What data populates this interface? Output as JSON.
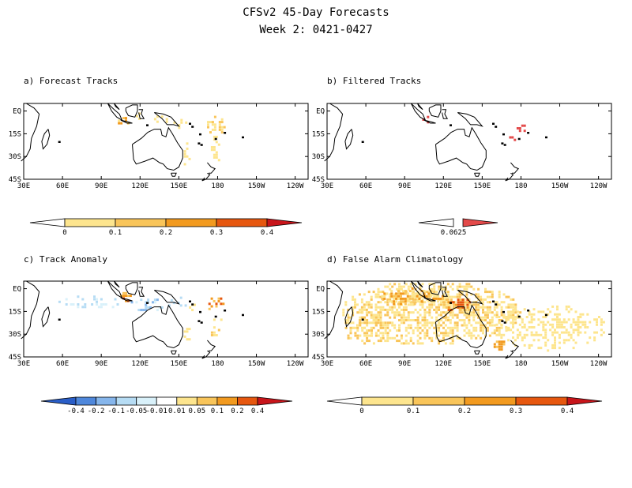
{
  "title": "CFSv2 45-Day Forecasts",
  "subtitle": "Week 2: 0421-0427",
  "panels": [
    {
      "label": "a) Forecast Tracks"
    },
    {
      "label": "b) Filtered Tracks"
    },
    {
      "label": "c) Track Anomaly"
    },
    {
      "label": "d) False Alarm Climatology"
    }
  ],
  "map": {
    "lon_ticks": [
      "30E",
      "60E",
      "90E",
      "120E",
      "150E",
      "180",
      "150W",
      "120W"
    ],
    "lat_ticks": [
      "EQ",
      "15S",
      "30S",
      "45S"
    ],
    "lon_range": [
      30,
      250
    ],
    "lat_range": [
      -45,
      5
    ]
  },
  "colorbars": [
    {
      "name": "forecast-colorbar",
      "labels": [
        "0",
        "0.1",
        "0.2",
        "0.3",
        "0.4"
      ],
      "colors": [
        "#ffffff",
        "#fde58e",
        "#f9c55a",
        "#f29a1f",
        "#e6570f",
        "#c8151b"
      ]
    },
    {
      "name": "filtered-colorbar",
      "labels": [
        "0.0625"
      ],
      "colors": [
        "#ffffff",
        "#e34a4a"
      ]
    },
    {
      "name": "anomaly-colorbar",
      "labels": [
        "-0.4",
        "-0.2",
        "-0.1",
        "-0.05",
        "-0.01",
        "0.01",
        "0.05",
        "0.1",
        "0.2",
        "0.4"
      ],
      "colors": [
        "#2a5ec8",
        "#4f88dc",
        "#86b6ec",
        "#b6dcf4",
        "#d9f1fa",
        "#ffffff",
        "#fde58e",
        "#f9c55a",
        "#f29a1f",
        "#e6570f",
        "#c8151b"
      ]
    },
    {
      "name": "false-alarm-colorbar",
      "labels": [
        "0",
        "0.1",
        "0.2",
        "0.3",
        "0.4"
      ],
      "colors": [
        "#ffffff",
        "#fde58e",
        "#f9c55a",
        "#f29a1f",
        "#e6570f",
        "#c8151b"
      ]
    }
  ]
}
